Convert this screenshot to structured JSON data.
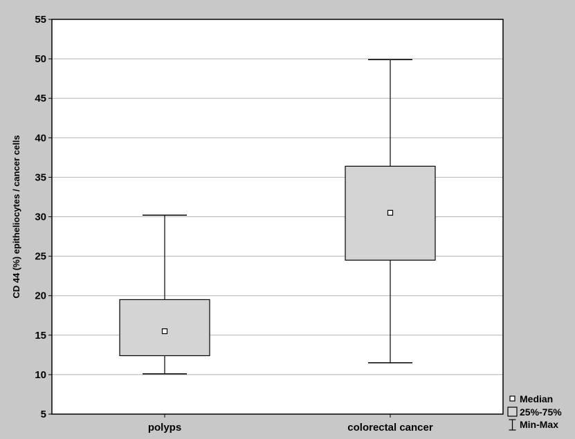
{
  "chart_data": {
    "type": "box",
    "title": "",
    "xlabel": "",
    "ylabel": "CD 44 (%) epitheliocytes / cancer cells",
    "ylim": [
      5,
      55
    ],
    "yticks": [
      5,
      10,
      15,
      20,
      25,
      30,
      35,
      40,
      45,
      50,
      55
    ],
    "grid": true,
    "legend_position": "bottom-right",
    "categories": [
      "polyps",
      "colorectal cancer"
    ],
    "boxes": [
      {
        "category": "polyps",
        "min": 10.1,
        "q1": 12.4,
        "median": 15.5,
        "q3": 19.5,
        "max": 30.2
      },
      {
        "category": "colorectal cancer",
        "min": 11.5,
        "q1": 24.5,
        "median": 30.5,
        "q3": 36.4,
        "max": 49.9
      }
    ],
    "legend": [
      {
        "label": "Median",
        "symbol": "median"
      },
      {
        "label": "25%-75%",
        "symbol": "box"
      },
      {
        "label": "Min-Max",
        "symbol": "whisker"
      }
    ],
    "colors": {
      "outer_background": "#c8c8c8",
      "plot_background": "#ffffff",
      "box_fill": "#d4d4d4",
      "line": "#000000",
      "grid": "#b4b4b4"
    }
  }
}
